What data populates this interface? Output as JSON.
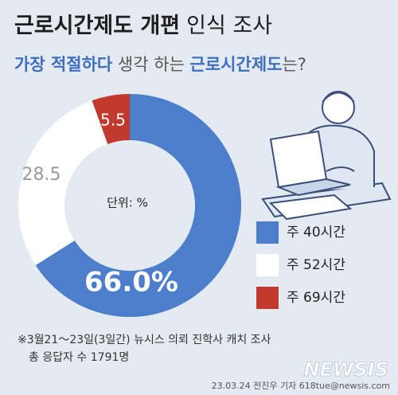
{
  "chart_data": {
    "type": "donut",
    "title_bold": "근로시간제도 개편",
    "title_rest": "인식 조사",
    "subtitle_parts": [
      "가장 적절하다",
      " 생각 하는 ",
      "근로시간제도",
      "는?"
    ],
    "unit_label": "단위:  %",
    "categories": [
      "주 40시간",
      "주 52시간",
      "주 69시간"
    ],
    "values": [
      66.0,
      28.5,
      5.5
    ],
    "value_labels": [
      "66.0%",
      "28.5",
      "5.5"
    ],
    "colors": [
      "#4c7ecb",
      "#ffffff",
      "#c23a2e"
    ],
    "notes": [
      "※3월21～23일(3일간) 뉴시스 의뢰 진학사 캐치 조사",
      "총 응답자 수 1791명"
    ],
    "credit": "23.03.24 전진우 기자 618tue@newsis.com",
    "source": "NEWSIS"
  }
}
